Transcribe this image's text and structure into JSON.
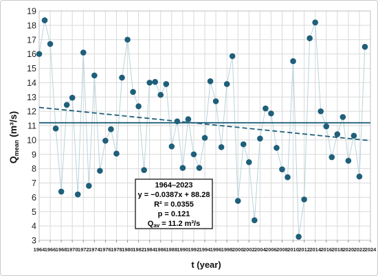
{
  "chart_data": {
    "type": "scatter",
    "xlabel": "t (year)",
    "ylabel_main": "Q",
    "ylabel_sub": "mean",
    "ylabel_units": " (m³/s)",
    "ylim": [
      3,
      19
    ],
    "xlim": [
      1964,
      2024
    ],
    "y_ticks": [
      3,
      4,
      5,
      6,
      7,
      8,
      9,
      10,
      11,
      12,
      13,
      14,
      15,
      16,
      17,
      18,
      19
    ],
    "x_ticks": [
      1964,
      1966,
      1968,
      1970,
      1972,
      1974,
      1976,
      1978,
      1980,
      1982,
      1984,
      1986,
      1988,
      1990,
      1992,
      1994,
      1996,
      1998,
      2000,
      2002,
      2004,
      2006,
      2008,
      2010,
      2012,
      2014,
      2016,
      2018,
      2020,
      2022,
      2024
    ],
    "grid": true,
    "x": [
      1964,
      1965,
      1966,
      1967,
      1968,
      1969,
      1970,
      1971,
      1972,
      1973,
      1974,
      1975,
      1976,
      1977,
      1978,
      1979,
      1980,
      1981,
      1982,
      1983,
      1984,
      1985,
      1986,
      1987,
      1988,
      1989,
      1990,
      1991,
      1992,
      1993,
      1994,
      1995,
      1996,
      1997,
      1998,
      1999,
      2000,
      2001,
      2002,
      2003,
      2004,
      2005,
      2006,
      2007,
      2008,
      2009,
      2010,
      2011,
      2012,
      2013,
      2014,
      2015,
      2016,
      2017,
      2018,
      2019,
      2020,
      2021,
      2022,
      2023
    ],
    "y": [
      16.0,
      18.35,
      16.7,
      10.8,
      6.4,
      12.45,
      12.95,
      6.2,
      16.1,
      6.8,
      14.5,
      7.85,
      9.95,
      10.75,
      9.05,
      14.35,
      17.0,
      13.35,
      12.35,
      7.9,
      14.0,
      14.05,
      13.15,
      13.9,
      9.55,
      11.3,
      8.05,
      11.45,
      9.0,
      8.05,
      10.15,
      14.1,
      12.7,
      9.5,
      13.9,
      15.85,
      5.75,
      9.7,
      8.45,
      4.4,
      10.1,
      12.2,
      11.85,
      9.45,
      7.95,
      7.4,
      15.5,
      3.25,
      5.85,
      17.1,
      18.2,
      12.0,
      10.95,
      8.8,
      10.4,
      11.6,
      8.55,
      10.3,
      7.45,
      16.5
    ],
    "mean_value": 11.2,
    "trend": {
      "slope": -0.0387,
      "intercept": 88.28
    },
    "point_color": "#1f5f7a",
    "line_color": "#b8d3dc",
    "mean_color": "#1f5f7a",
    "trend_color": "#1f5f7a",
    "annotation": {
      "period": "1964–2023",
      "equation": "y = −0.0387x + 88.28",
      "r2": "R² = 0.0355",
      "p": "p = 0.121",
      "q_prefix": "Q",
      "q_sub": "av",
      "q_suffix": " = 11.2 m³/s"
    }
  }
}
